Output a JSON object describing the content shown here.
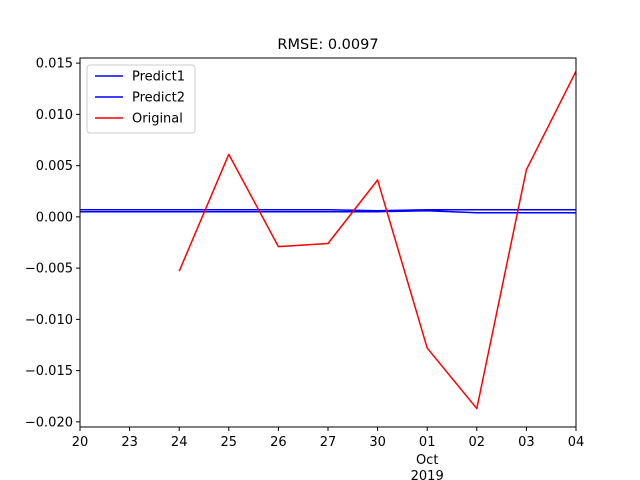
{
  "chart_data": {
    "type": "line",
    "title": "RMSE: 0.0097",
    "xlabel": "",
    "ylabel": "",
    "x_ticks": [
      "20",
      "23",
      "24",
      "25",
      "26",
      "27",
      "30",
      "01",
      "02",
      "03",
      "04"
    ],
    "x_secondary_label": [
      "Oct",
      "2019"
    ],
    "x_secondary_at": "01",
    "ylim": [
      -0.0205,
      0.0155
    ],
    "y_ticks": [
      0.015,
      0.01,
      0.005,
      0.0,
      -0.005,
      -0.01,
      -0.015,
      -0.02
    ],
    "y_tick_labels": [
      "0.015",
      "0.010",
      "0.005",
      "0.000",
      "−0.005",
      "−0.010",
      "−0.015",
      "−0.020"
    ],
    "grid": false,
    "legend_position": "top-left",
    "series": [
      {
        "name": "Predict1",
        "color": "#0000ff",
        "x": [
          "20",
          "23",
          "24",
          "25",
          "26",
          "27",
          "30",
          "01",
          "02",
          "03",
          "04"
        ],
        "values": [
          0.0007,
          0.0007,
          0.0007,
          0.0007,
          0.0007,
          0.0007,
          0.0006,
          0.0007,
          0.0007,
          0.0007,
          0.0007
        ]
      },
      {
        "name": "Predict2",
        "color": "#0000ff",
        "x": [
          "20",
          "23",
          "24",
          "25",
          "26",
          "27",
          "30",
          "01",
          "02",
          "03",
          "04"
        ],
        "values": [
          0.0005,
          0.0005,
          0.0005,
          0.0005,
          0.0005,
          0.0005,
          0.0005,
          0.0006,
          0.0004,
          0.0004,
          0.0004
        ]
      },
      {
        "name": "Original",
        "color": "#ff0000",
        "x": [
          "24",
          "25",
          "26",
          "27",
          "30",
          "01",
          "02",
          "03",
          "04"
        ],
        "values": [
          -0.0053,
          0.0061,
          -0.0029,
          -0.0026,
          0.0036,
          -0.0128,
          -0.0187,
          0.0046,
          0.0142
        ]
      }
    ]
  }
}
